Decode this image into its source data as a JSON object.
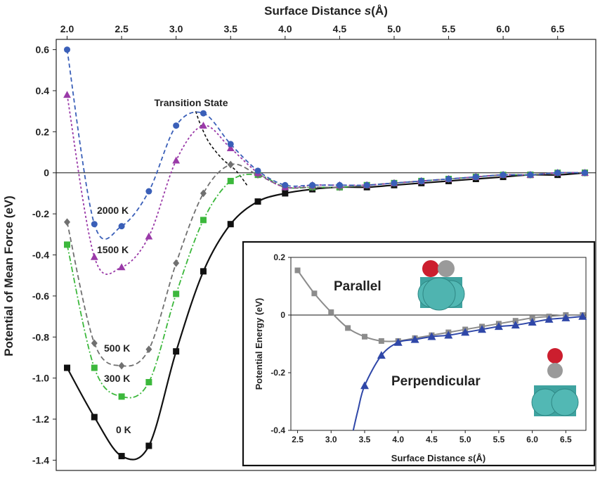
{
  "chart_data": [
    {
      "type": "line",
      "xlabel_main": "Surface Distance ",
      "xlabel_var": "s",
      "xlabel_unit": "(Å)",
      "ylabel": "Potential of Mean Force (eV)",
      "xlim": [
        1.9,
        6.85
      ],
      "ylim": [
        -1.45,
        0.65
      ],
      "x_ticks": [
        "2.0",
        "2.5",
        "3.0",
        "3.5",
        "4.0",
        "4.5",
        "5.0",
        "5.5",
        "6.0",
        "6.5"
      ],
      "y_ticks": [
        "0.6",
        "0.4",
        "0.2",
        "0",
        "-0.2",
        "-0.4",
        "-0.6",
        "-0.8",
        "-1.0",
        "-1.2",
        "-1.4"
      ],
      "annotation": "Transition State",
      "series": [
        {
          "name": "2000 K",
          "color": "#3a5fb8",
          "marker": "circle",
          "dash": "6,4",
          "x": [
            2.0,
            2.25,
            2.5,
            2.75,
            3.0,
            3.25,
            3.5,
            3.75,
            4.0,
            4.25,
            4.5,
            4.75,
            5.0,
            5.25,
            5.5,
            5.75,
            6.0,
            6.25,
            6.5,
            6.75
          ],
          "values": [
            0.6,
            -0.25,
            -0.26,
            -0.09,
            0.23,
            0.29,
            0.14,
            0.01,
            -0.06,
            -0.06,
            -0.06,
            -0.06,
            -0.05,
            -0.04,
            -0.03,
            -0.02,
            -0.01,
            -0.01,
            0.0,
            0.0
          ]
        },
        {
          "name": "1500 K",
          "color": "#9a3aa8",
          "marker": "triangle",
          "dash": "3,3",
          "x": [
            2.0,
            2.25,
            2.5,
            2.75,
            3.0,
            3.25,
            3.5,
            3.75,
            4.0,
            4.25,
            4.5,
            4.75,
            5.0,
            5.25,
            5.5,
            5.75,
            6.0,
            6.25,
            6.5,
            6.75
          ],
          "values": [
            0.38,
            -0.41,
            -0.46,
            -0.31,
            0.06,
            0.23,
            0.12,
            0.0,
            -0.07,
            -0.06,
            -0.06,
            -0.06,
            -0.05,
            -0.04,
            -0.03,
            -0.02,
            -0.01,
            -0.01,
            0.0,
            0.0
          ]
        },
        {
          "name": "500 K",
          "color": "#707070",
          "marker": "diamond",
          "dash": "7,4",
          "x": [
            2.0,
            2.25,
            2.5,
            2.75,
            3.0,
            3.25,
            3.5,
            3.75,
            4.0,
            4.25,
            4.5,
            4.75,
            5.0,
            5.25,
            5.5,
            5.75,
            6.0,
            6.25,
            6.5,
            6.75
          ],
          "values": [
            -0.24,
            -0.83,
            -0.94,
            -0.86,
            -0.44,
            -0.1,
            0.04,
            -0.01,
            -0.07,
            -0.07,
            -0.07,
            -0.06,
            -0.05,
            -0.04,
            -0.03,
            -0.02,
            -0.01,
            -0.01,
            0.0,
            0.0
          ]
        },
        {
          "name": "300 K",
          "color": "#3cb83c",
          "marker": "square",
          "dash": "8,3,2,3",
          "x": [
            2.0,
            2.25,
            2.5,
            2.75,
            3.0,
            3.25,
            3.5,
            3.75,
            4.0,
            4.25,
            4.5,
            4.75,
            5.0,
            5.25,
            5.5,
            5.75,
            6.0,
            6.25,
            6.5,
            6.75
          ],
          "values": [
            -0.35,
            -0.95,
            -1.09,
            -1.02,
            -0.59,
            -0.23,
            -0.04,
            -0.01,
            -0.07,
            -0.07,
            -0.07,
            -0.06,
            -0.05,
            -0.04,
            -0.03,
            -0.02,
            -0.01,
            -0.01,
            0.0,
            0.0
          ]
        },
        {
          "name": "0 K",
          "color": "#111111",
          "marker": "square",
          "dash": "",
          "x": [
            2.0,
            2.25,
            2.5,
            2.75,
            3.0,
            3.25,
            3.5,
            3.75,
            4.0,
            4.25,
            4.5,
            4.75,
            5.0,
            5.25,
            5.5,
            5.75,
            6.0,
            6.25,
            6.5,
            6.75
          ],
          "values": [
            -0.95,
            -1.19,
            -1.38,
            -1.33,
            -0.87,
            -0.48,
            -0.25,
            -0.14,
            -0.1,
            -0.08,
            -0.07,
            -0.07,
            -0.06,
            -0.05,
            -0.04,
            -0.03,
            -0.02,
            -0.01,
            -0.01,
            0.0
          ]
        }
      ]
    },
    {
      "type": "line",
      "xlabel_main": "Surface Distance ",
      "xlabel_var": "s",
      "xlabel_unit": "(Å)",
      "ylabel": "Potential Energy (eV)",
      "xlim": [
        2.4,
        6.8
      ],
      "ylim": [
        -0.4,
        0.2
      ],
      "x_ticks": [
        "2.5",
        "3.0",
        "3.5",
        "4.0",
        "4.5",
        "5.0",
        "5.5",
        "6.0",
        "6.5"
      ],
      "y_ticks": [
        "0.2",
        "0",
        "-0.2",
        "-0.4"
      ],
      "series": [
        {
          "name": "Parallel",
          "color": "#8c8c8c",
          "marker": "square",
          "x": [
            2.5,
            2.75,
            3.0,
            3.25,
            3.5,
            3.75,
            4.0,
            4.25,
            4.5,
            4.75,
            5.0,
            5.25,
            5.5,
            5.75,
            6.0,
            6.25,
            6.5,
            6.75
          ],
          "values": [
            0.155,
            0.075,
            0.01,
            -0.045,
            -0.075,
            -0.09,
            -0.09,
            -0.08,
            -0.07,
            -0.06,
            -0.05,
            -0.04,
            -0.03,
            -0.02,
            -0.01,
            -0.005,
            0.0,
            0.0
          ]
        },
        {
          "name": "Perpendicular",
          "color": "#2f47a8",
          "marker": "triangle",
          "x": [
            3.5,
            3.75,
            4.0,
            4.25,
            4.5,
            4.75,
            5.0,
            5.25,
            5.5,
            5.75,
            6.0,
            6.25,
            6.5,
            6.75
          ],
          "values": [
            -0.245,
            -0.14,
            -0.095,
            -0.085,
            -0.075,
            -0.07,
            -0.06,
            -0.05,
            -0.04,
            -0.035,
            -0.025,
            -0.015,
            -0.01,
            -0.005
          ]
        }
      ]
    }
  ]
}
